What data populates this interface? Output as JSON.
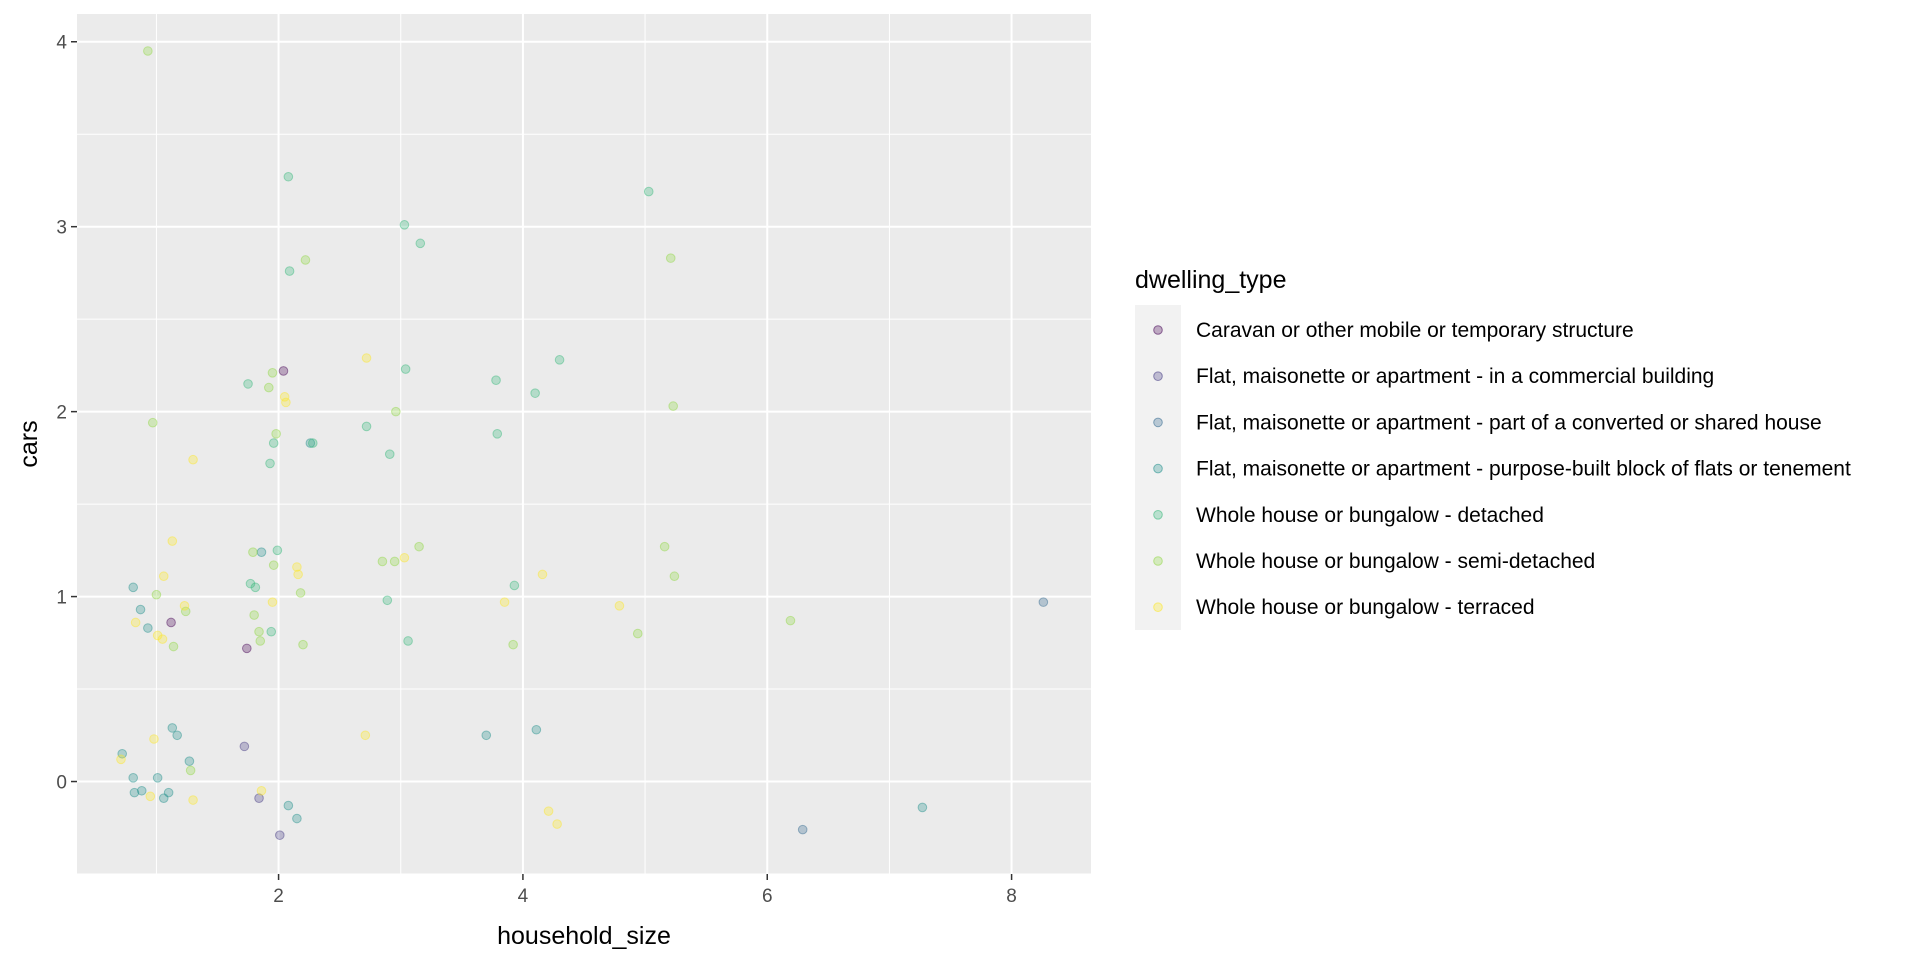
{
  "chart_data": {
    "type": "scatter",
    "title": "",
    "xlabel": "household_size",
    "ylabel": "cars",
    "xlim": [
      0.35,
      8.65
    ],
    "ylim": [
      -0.5,
      4.15
    ],
    "xticks": [
      2,
      4,
      6,
      8
    ],
    "yticks": [
      0,
      1,
      2,
      3,
      4
    ],
    "legend_title": "dwelling_type",
    "legend_position": "right",
    "series": [
      {
        "name": "Caravan or other mobile or temporary structure",
        "color": "#440154",
        "points": [
          [
            1.12,
            0.86
          ],
          [
            1.74,
            0.72
          ],
          [
            2.04,
            2.22
          ]
        ]
      },
      {
        "name": "Flat, maisonette or apartment - in a commercial building",
        "color": "#443A83",
        "points": [
          [
            1.72,
            0.19
          ],
          [
            1.84,
            -0.09
          ],
          [
            2.01,
            -0.29
          ]
        ]
      },
      {
        "name": "Flat, maisonette or apartment - part of a converted or shared house",
        "color": "#31688E",
        "points": [
          [
            6.29,
            -0.26
          ],
          [
            8.26,
            0.97
          ]
        ]
      },
      {
        "name": "Flat, maisonette or apartment - purpose-built block of flats or tenement",
        "color": "#21908C",
        "points": [
          [
            0.72,
            0.15
          ],
          [
            0.81,
            0.02
          ],
          [
            0.82,
            -0.06
          ],
          [
            0.88,
            -0.05
          ],
          [
            0.81,
            1.05
          ],
          [
            0.87,
            0.93
          ],
          [
            0.93,
            0.83
          ],
          [
            1.01,
            0.02
          ],
          [
            1.06,
            -0.09
          ],
          [
            1.1,
            -0.06
          ],
          [
            1.13,
            0.29
          ],
          [
            1.17,
            0.25
          ],
          [
            1.27,
            0.11
          ],
          [
            1.86,
            1.24
          ],
          [
            2.08,
            -0.13
          ],
          [
            2.15,
            -0.2
          ],
          [
            2.26,
            1.83
          ],
          [
            3.7,
            0.25
          ],
          [
            4.11,
            0.28
          ],
          [
            7.27,
            -0.14
          ]
        ]
      },
      {
        "name": "Whole house or bungalow - detached",
        "color": "#35B779",
        "points": [
          [
            1.75,
            2.15
          ],
          [
            1.77,
            1.07
          ],
          [
            1.81,
            1.05
          ],
          [
            1.93,
            1.72
          ],
          [
            1.96,
            1.83
          ],
          [
            1.94,
            0.81
          ],
          [
            1.99,
            1.25
          ],
          [
            2.08,
            3.27
          ],
          [
            2.09,
            2.76
          ],
          [
            2.28,
            1.83
          ],
          [
            2.72,
            1.92
          ],
          [
            2.89,
            0.98
          ],
          [
            2.91,
            1.77
          ],
          [
            3.03,
            3.01
          ],
          [
            3.04,
            2.23
          ],
          [
            3.06,
            0.76
          ],
          [
            3.16,
            2.91
          ],
          [
            3.78,
            2.17
          ],
          [
            3.79,
            1.88
          ],
          [
            3.93,
            1.06
          ],
          [
            4.1,
            2.1
          ],
          [
            4.3,
            2.28
          ],
          [
            5.03,
            3.19
          ]
        ]
      },
      {
        "name": "Whole house or bungalow - semi-detached",
        "color": "#90D743",
        "points": [
          [
            0.93,
            3.95
          ],
          [
            0.97,
            1.94
          ],
          [
            1.0,
            1.01
          ],
          [
            1.14,
            0.73
          ],
          [
            1.24,
            0.92
          ],
          [
            1.28,
            0.06
          ],
          [
            1.79,
            1.24
          ],
          [
            1.8,
            0.9
          ],
          [
            1.84,
            0.81
          ],
          [
            1.85,
            0.76
          ],
          [
            1.92,
            2.13
          ],
          [
            1.95,
            2.21
          ],
          [
            1.98,
            1.88
          ],
          [
            1.96,
            1.17
          ],
          [
            2.18,
            1.02
          ],
          [
            2.2,
            0.74
          ],
          [
            2.22,
            2.82
          ],
          [
            2.85,
            1.19
          ],
          [
            2.95,
            1.19
          ],
          [
            2.96,
            2.0
          ],
          [
            3.15,
            1.27
          ],
          [
            3.92,
            0.74
          ],
          [
            4.94,
            0.8
          ],
          [
            5.16,
            1.27
          ],
          [
            5.21,
            2.83
          ],
          [
            5.23,
            2.03
          ],
          [
            5.24,
            1.11
          ],
          [
            6.19,
            0.87
          ]
        ]
      },
      {
        "name": "Whole house or bungalow - terraced",
        "color": "#FDE725",
        "points": [
          [
            0.71,
            0.12
          ],
          [
            0.83,
            0.86
          ],
          [
            0.95,
            -0.08
          ],
          [
            0.98,
            0.23
          ],
          [
            1.01,
            0.79
          ],
          [
            1.05,
            0.77
          ],
          [
            1.06,
            1.11
          ],
          [
            1.13,
            1.3
          ],
          [
            1.23,
            0.95
          ],
          [
            1.3,
            1.74
          ],
          [
            1.3,
            -0.1
          ],
          [
            1.86,
            -0.05
          ],
          [
            1.95,
            0.97
          ],
          [
            2.05,
            2.08
          ],
          [
            2.06,
            2.05
          ],
          [
            2.15,
            1.16
          ],
          [
            2.16,
            1.12
          ],
          [
            2.71,
            0.25
          ],
          [
            2.72,
            2.29
          ],
          [
            3.03,
            1.21
          ],
          [
            3.85,
            0.97
          ],
          [
            4.16,
            1.12
          ],
          [
            4.21,
            -0.16
          ],
          [
            4.28,
            -0.23
          ],
          [
            4.79,
            0.95
          ]
        ]
      }
    ]
  }
}
